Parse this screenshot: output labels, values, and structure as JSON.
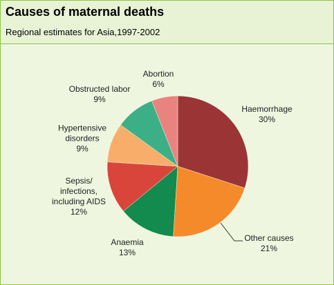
{
  "chart_data": {
    "type": "pie",
    "title": "Causes of maternal deaths",
    "subtitle": "Regional estimates for Asia,1997-2002",
    "categories": [
      "Haemorrhage",
      "Other causes",
      "Anaemia",
      "Sepsis/\ninfections,\nincluding AIDS",
      "Hypertensive\ndisorders",
      "Obstructed labor",
      "Abortion"
    ],
    "values": [
      30,
      21,
      13,
      12,
      9,
      9,
      6
    ],
    "value_labels": [
      "30%",
      "21%",
      "13%",
      "12%",
      "9%",
      "9%",
      "6%"
    ],
    "colors": [
      "#9b3535",
      "#f58a2a",
      "#138a4e",
      "#d9453b",
      "#f9ad6a",
      "#3daf87",
      "#e8837f"
    ]
  }
}
